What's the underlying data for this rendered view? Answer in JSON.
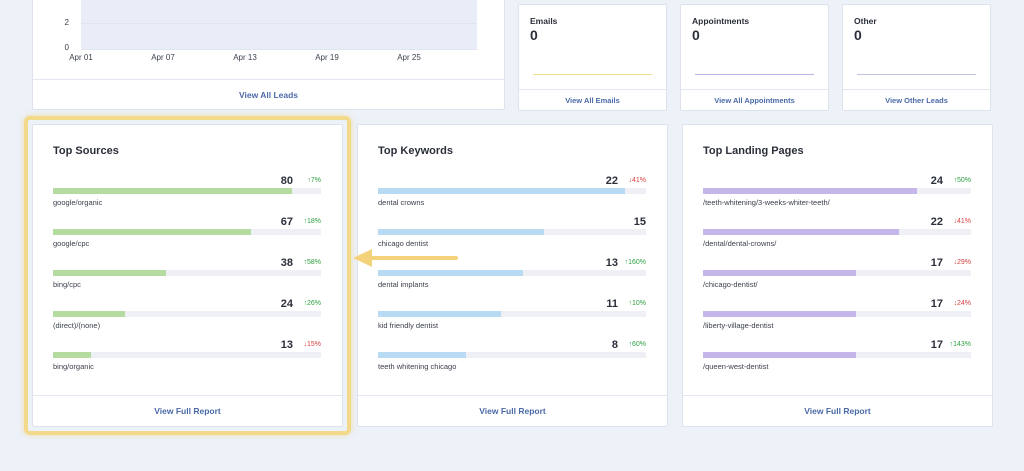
{
  "leads_chart": {
    "yticks": [
      "2",
      "0"
    ],
    "xticks": [
      "Apr 01",
      "Apr 07",
      "Apr 13",
      "Apr 19",
      "Apr 25"
    ],
    "footer": "View All Leads"
  },
  "stats": [
    {
      "title": "Emails",
      "value": "0",
      "footer": "View All Emails",
      "line_color": "#f1df8c"
    },
    {
      "title": "Appointments",
      "value": "0",
      "footer": "View All Appointments",
      "line_color": "#b9b4ec"
    },
    {
      "title": "Other",
      "value": "0",
      "footer": "View Other Leads",
      "line_color": "#bfc6dc"
    }
  ],
  "top_sources": {
    "title": "Top Sources",
    "footer": "View Full Report",
    "bar_color": "#b5dba0",
    "rows": [
      {
        "label": "google/organic",
        "value": "80",
        "change": "↑7%",
        "trend": "up",
        "fill": 0.89
      },
      {
        "label": "google/cpc",
        "value": "67",
        "change": "↑18%",
        "trend": "up",
        "fill": 0.74
      },
      {
        "label": "bing/cpc",
        "value": "38",
        "change": "↑58%",
        "trend": "up",
        "fill": 0.42
      },
      {
        "label": "(direct)/(none)",
        "value": "24",
        "change": "↑26%",
        "trend": "up",
        "fill": 0.27
      },
      {
        "label": "bing/organic",
        "value": "13",
        "change": "↓15%",
        "trend": "down",
        "fill": 0.14
      }
    ]
  },
  "top_keywords": {
    "title": "Top Keywords",
    "footer": "View Full Report",
    "bar_color": "#b8daf3",
    "rows": [
      {
        "label": "dental crowns",
        "value": "22",
        "change": "↓41%",
        "trend": "down",
        "fill": 0.92
      },
      {
        "label": "chicago dentist",
        "value": "15",
        "change": "",
        "trend": "none",
        "fill": 0.62
      },
      {
        "label": "dental implants",
        "value": "13",
        "change": "↑160%",
        "trend": "up",
        "fill": 0.54
      },
      {
        "label": "kid friendly dentist",
        "value": "11",
        "change": "↑10%",
        "trend": "up",
        "fill": 0.46
      },
      {
        "label": "teeth whitening chicago",
        "value": "8",
        "change": "↑60%",
        "trend": "up",
        "fill": 0.33
      }
    ]
  },
  "top_landing_pages": {
    "title": "Top Landing Pages",
    "footer": "View Full Report",
    "bar_color": "#c5b6ea",
    "rows": [
      {
        "label": "/teeth-whitening/3-weeks-whiter-teeth/",
        "value": "24",
        "change": "↑50%",
        "trend": "up",
        "fill": 0.8
      },
      {
        "label": "/dental/dental-crowns/",
        "value": "22",
        "change": "↓41%",
        "trend": "down",
        "fill": 0.73
      },
      {
        "label": "/chicago-dentist/",
        "value": "17",
        "change": "↓29%",
        "trend": "down",
        "fill": 0.57
      },
      {
        "label": "/liberty-village-dentist",
        "value": "17",
        "change": "↓24%",
        "trend": "down",
        "fill": 0.57
      },
      {
        "label": "/queen-west-dentist",
        "value": "17",
        "change": "↑143%",
        "trend": "up",
        "fill": 0.57
      }
    ]
  }
}
